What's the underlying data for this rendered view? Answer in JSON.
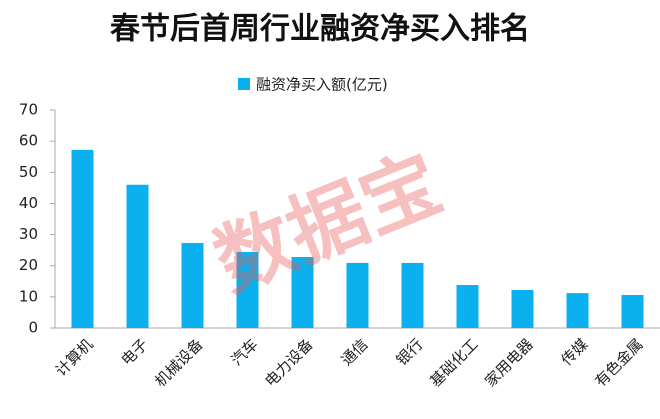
{
  "chart_data": {
    "type": "bar",
    "title": "春节后首周行业融资净买入排名",
    "watermark": "数据宝",
    "categories": [
      "计算机",
      "电子",
      "机械设备",
      "汽车",
      "电力设备",
      "通信",
      "银行",
      "基础化工",
      "家用电器",
      "传媒",
      "有色金属"
    ],
    "series": [
      {
        "name": "融资净买入额(亿元)",
        "color": "#0bb0ee",
        "values": [
          57.2,
          46.0,
          27.3,
          24.4,
          22.8,
          20.9,
          20.9,
          13.8,
          12.2,
          11.2,
          10.6
        ]
      }
    ],
    "ylim": [
      0,
      70
    ],
    "yticks": [
      0,
      10,
      20,
      30,
      40,
      50,
      60,
      70
    ],
    "grid": false
  }
}
